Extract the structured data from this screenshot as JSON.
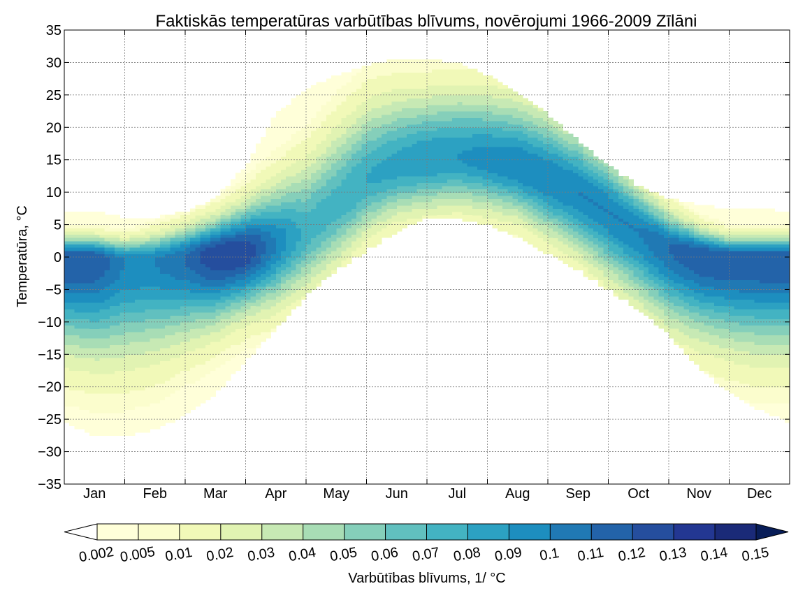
{
  "chart_data": {
    "type": "heatmap",
    "title": "Faktiskās temperatūras varbūtības blīvums, novērojumi 1966-2009 Zīlāni",
    "xlabel": "",
    "ylabel": "Temperatūra,  °C",
    "x_categories": [
      "Jan",
      "Feb",
      "Mar",
      "Apr",
      "May",
      "Jun",
      "Jul",
      "Aug",
      "Sep",
      "Oct",
      "Nov",
      "Dec"
    ],
    "x_range_months": [
      0,
      12
    ],
    "ylim": [
      -35,
      35
    ],
    "y_ticks": [
      35,
      30,
      25,
      20,
      15,
      10,
      5,
      0,
      -5,
      -10,
      -15,
      -20,
      -25,
      -30,
      -35
    ],
    "grid": true,
    "colorbar": {
      "label": "Varbūtības blīvums, 1/ °C",
      "placement": "bottom",
      "extend": "both",
      "levels": [
        0.002,
        0.005,
        0.01,
        0.02,
        0.03,
        0.04,
        0.05,
        0.06,
        0.07,
        0.08,
        0.09,
        0.1,
        0.11,
        0.12,
        0.13,
        0.14,
        0.15
      ],
      "level_labels": [
        "0.002",
        "0.005",
        "0.01",
        "0.02",
        "0.03",
        "0.04",
        "0.05",
        "0.06",
        "0.07",
        "0.08",
        "0.09",
        "0.1",
        "0.11",
        "0.12",
        "0.13",
        "0.14",
        "0.15"
      ],
      "colors": [
        "#ffffd9",
        "#fbfdcd",
        "#f1f9b8",
        "#e1f3b2",
        "#c7e9b4",
        "#a8ddb5",
        "#85cfba",
        "#61c0bf",
        "#43b3c2",
        "#2ca1c2",
        "#1d8ebf",
        "#2079b4",
        "#2363a9",
        "#254e9e",
        "#233792",
        "#1a2a78",
        "#0f1e54"
      ],
      "under_color": "#ffffff",
      "over_color": "#081d58"
    },
    "density_profile": {
      "months": [
        0.0,
        0.5,
        1.0,
        1.5,
        2.0,
        2.5,
        3.0,
        3.5,
        4.0,
        4.5,
        5.0,
        5.5,
        6.0,
        6.5,
        7.0,
        7.5,
        8.0,
        8.5,
        9.0,
        9.5,
        10.0,
        10.5,
        11.0,
        11.5,
        12.0
      ],
      "low_extent_c": [
        -25.5,
        -27.5,
        -27.5,
        -26.5,
        -24.5,
        -21,
        -16,
        -11,
        -6,
        -2,
        1,
        4,
        6,
        6,
        5,
        3,
        0.5,
        -2,
        -5,
        -8,
        -12,
        -17,
        -21,
        -23.5,
        -25.5
      ],
      "high_extent_c": [
        7,
        7,
        6,
        6,
        7,
        9,
        14,
        22,
        26,
        28,
        29.5,
        30.5,
        30.5,
        30,
        28,
        25.5,
        22,
        18,
        14,
        11,
        9,
        8,
        7.5,
        7.5,
        7
      ],
      "peak_c": [
        0,
        0,
        -0.5,
        -0.5,
        0,
        0.5,
        1,
        2,
        4,
        8,
        12,
        14,
        15,
        15.5,
        15,
        14,
        12,
        10,
        7,
        4,
        1.5,
        0.5,
        0,
        0,
        0
      ],
      "upper_spread_c": [
        2,
        2,
        2,
        2.5,
        3,
        3.5,
        4.5,
        6,
        7,
        7.5,
        7.5,
        7,
        6.5,
        6.5,
        6.5,
        6.5,
        6.5,
        6,
        5.5,
        4.5,
        3.5,
        2.5,
        2,
        2,
        2
      ],
      "lower_spread_c": [
        9,
        9.5,
        9.5,
        9,
        8,
        7,
        6,
        6,
        6,
        6,
        5.5,
        5,
        5,
        5,
        5,
        5,
        5.5,
        6,
        6.5,
        7,
        7.5,
        8,
        8.5,
        9,
        9
      ],
      "peak_density": [
        0.12,
        0.12,
        0.1,
        0.1,
        0.11,
        0.13,
        0.13,
        0.1,
        0.075,
        0.075,
        0.08,
        0.085,
        0.09,
        0.09,
        0.095,
        0.1,
        0.1,
        0.1,
        0.1,
        0.1,
        0.11,
        0.12,
        0.12,
        0.12,
        0.12
      ]
    }
  }
}
